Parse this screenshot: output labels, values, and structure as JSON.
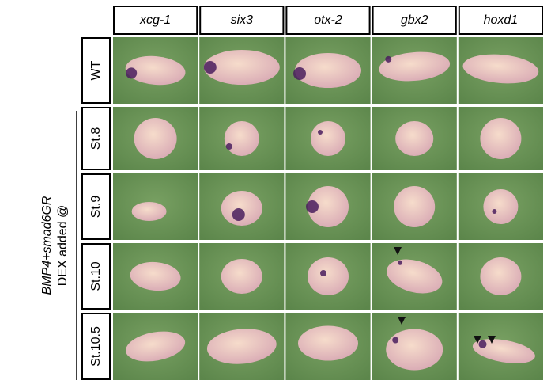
{
  "columns": [
    "xcg-1",
    "six3",
    "otx-2",
    "gbx2",
    "hoxd1"
  ],
  "rows": [
    "WT",
    "St.8",
    "St.9",
    "St.10",
    "St.10.5"
  ],
  "side_label": {
    "line1": "BMP4+smad6GR",
    "line2": "DEX added @"
  }
}
